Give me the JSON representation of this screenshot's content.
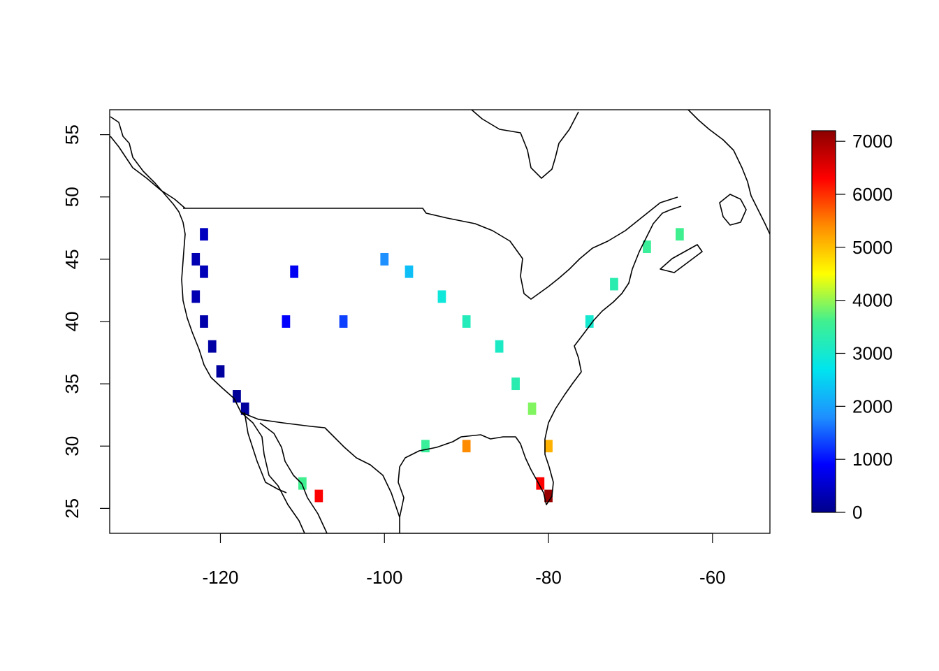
{
  "chart_data": {
    "type": "heatmap",
    "title": "",
    "xlabel": "",
    "ylabel": "",
    "xlim": [
      -133.5,
      -53
    ],
    "ylim": [
      23,
      57
    ],
    "xticks": [
      -120,
      -100,
      -80,
      -60
    ],
    "yticks": [
      25,
      30,
      35,
      40,
      45,
      50,
      55
    ],
    "xtick_labels": [
      "-120",
      "-100",
      "-80",
      "-60"
    ],
    "ytick_labels": [
      "25",
      "30",
      "35",
      "40",
      "45",
      "50",
      "55"
    ],
    "grid": false,
    "colorbar": {
      "min": 0,
      "max": 7200,
      "ticks": [
        0,
        1000,
        2000,
        3000,
        4000,
        5000,
        6000,
        7000
      ],
      "tick_labels": [
        "0",
        "1000",
        "2000",
        "3000",
        "4000",
        "5000",
        "6000",
        "7000"
      ],
      "colors": [
        "#00008B",
        "#0000FF",
        "#1E90FF",
        "#00E5EE",
        "#40F090",
        "#FFFF00",
        "#FF8C00",
        "#FF0000",
        "#8B0000"
      ]
    },
    "cell_size_deg": 1,
    "cells": [
      {
        "lon": -122,
        "lat": 47,
        "value": 400
      },
      {
        "lon": -123,
        "lat": 45,
        "value": 300
      },
      {
        "lon": -122,
        "lat": 44,
        "value": 350
      },
      {
        "lon": -123,
        "lat": 42,
        "value": 300
      },
      {
        "lon": -122,
        "lat": 40,
        "value": 250
      },
      {
        "lon": -121,
        "lat": 38,
        "value": 200
      },
      {
        "lon": -120,
        "lat": 36,
        "value": 150
      },
      {
        "lon": -118,
        "lat": 34,
        "value": 100
      },
      {
        "lon": -117,
        "lat": 33,
        "value": 150
      },
      {
        "lon": -112,
        "lat": 40,
        "value": 900
      },
      {
        "lon": -111,
        "lat": 44,
        "value": 800
      },
      {
        "lon": -105,
        "lat": 40,
        "value": 1300
      },
      {
        "lon": -100,
        "lat": 45,
        "value": 1800
      },
      {
        "lon": -97,
        "lat": 44,
        "value": 2300
      },
      {
        "lon": -93,
        "lat": 42,
        "value": 2900
      },
      {
        "lon": -90,
        "lat": 40,
        "value": 3200
      },
      {
        "lon": -86,
        "lat": 38,
        "value": 3100
      },
      {
        "lon": -84,
        "lat": 35,
        "value": 3300
      },
      {
        "lon": -82,
        "lat": 33,
        "value": 3900
      },
      {
        "lon": -80,
        "lat": 30,
        "value": 5100
      },
      {
        "lon": -81,
        "lat": 27,
        "value": 6300
      },
      {
        "lon": -80,
        "lat": 26,
        "value": 7100
      },
      {
        "lon": -90,
        "lat": 30,
        "value": 5400
      },
      {
        "lon": -95,
        "lat": 30,
        "value": 3500
      },
      {
        "lon": -75,
        "lat": 40,
        "value": 3000
      },
      {
        "lon": -72,
        "lat": 43,
        "value": 3300
      },
      {
        "lon": -68,
        "lat": 46,
        "value": 3500
      },
      {
        "lon": -64,
        "lat": 47,
        "value": 3600
      },
      {
        "lon": -110,
        "lat": 27,
        "value": 3600
      },
      {
        "lon": -108,
        "lat": 26,
        "value": 6300
      }
    ]
  }
}
